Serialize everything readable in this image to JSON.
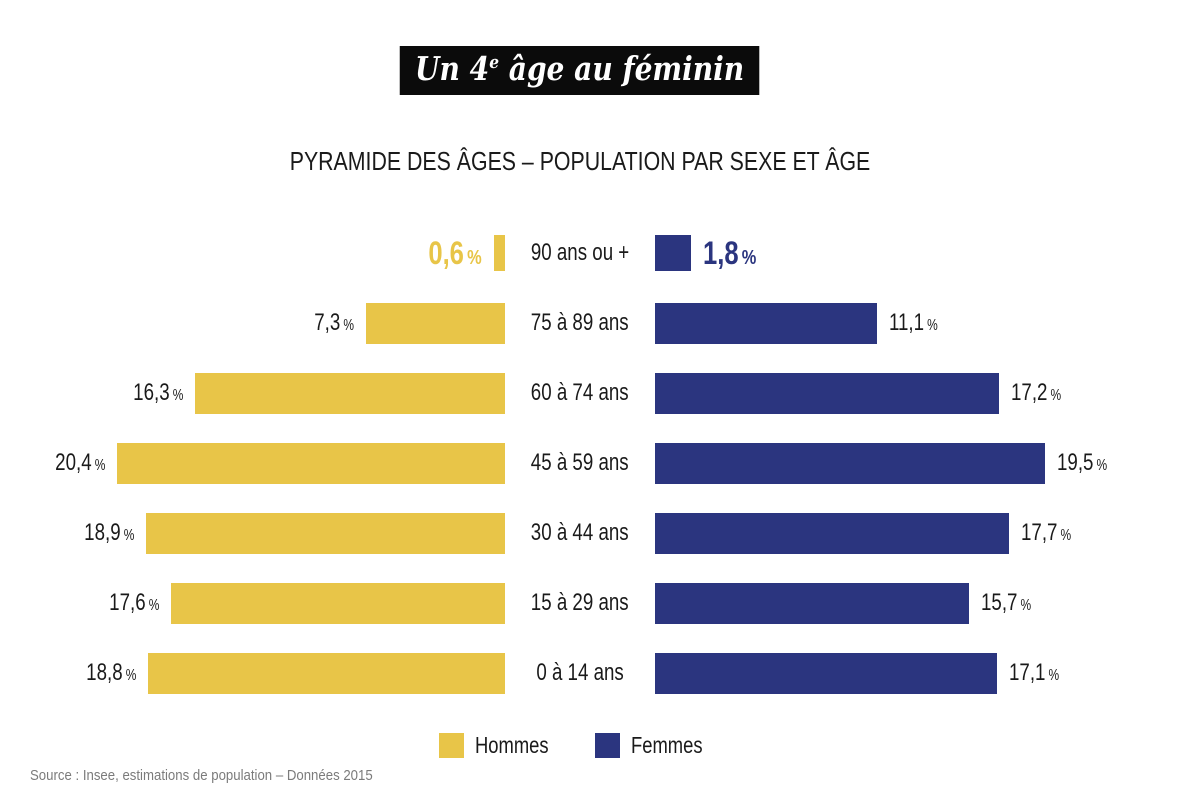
{
  "header": {
    "title_pre": "Un 4",
    "title_sup": "e",
    "title_post": " âge au féminin",
    "subtitle": "PYRAMIDE DES ÂGES – POPULATION PAR SEXE ET ÂGE"
  },
  "footer": {
    "source": "Source : Insee, estimations de population – Données 2015"
  },
  "colors": {
    "hommes_yellow": "#E8C548",
    "femmes_navy": "#2B357F",
    "banner_bg": "#0B0B0B",
    "banner_text": "#FFFFFF",
    "text": "#1A1A1A",
    "source_gray": "#7B7B7B"
  },
  "chart_data": {
    "type": "bar",
    "variant": "population-pyramid",
    "title": "PYRAMIDE DES ÂGES – POPULATION PAR SEXE ET ÂGE",
    "unit": "%",
    "legend_position": "bottom",
    "value_range": [
      0,
      20.4
    ],
    "categories": [
      "90 ans ou +",
      "75 à 89 ans",
      "60 à 74 ans",
      "45 à 59 ans",
      "30 à 44 ans",
      "15 à 29 ans",
      "0 à 14 ans"
    ],
    "series": [
      {
        "name": "Hommes",
        "side": "left",
        "color": "#E8C548",
        "values": [
          0.6,
          7.3,
          16.3,
          20.4,
          18.9,
          17.6,
          18.8
        ],
        "labels": [
          "0,6",
          "7,3",
          "16,3",
          "20,4",
          "18,9",
          "17,6",
          "18,8"
        ]
      },
      {
        "name": "Femmes",
        "side": "right",
        "color": "#2B357F",
        "values": [
          1.8,
          11.1,
          17.2,
          19.5,
          17.7,
          15.7,
          17.1
        ],
        "labels": [
          "1,8",
          "11,1",
          "17,2",
          "19,5",
          "17,7",
          "15,7",
          "17,1"
        ]
      }
    ]
  }
}
